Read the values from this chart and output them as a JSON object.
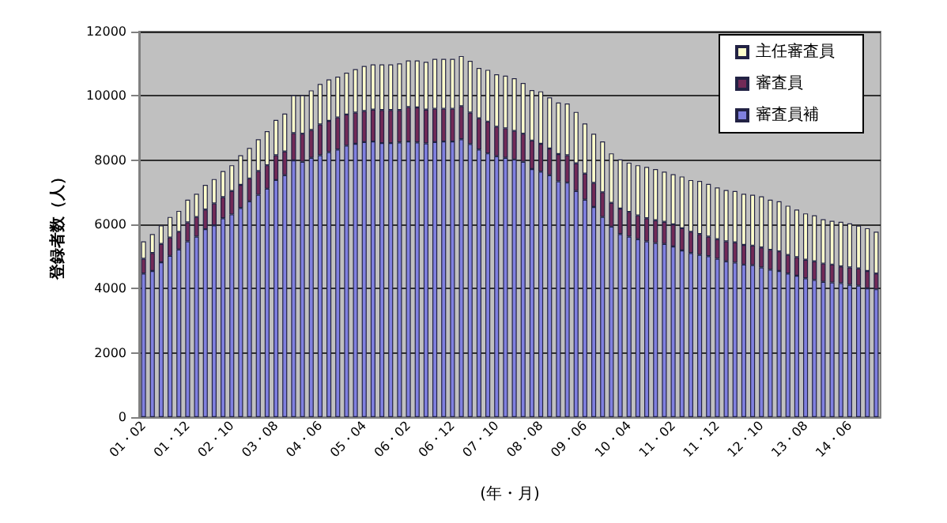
{
  "chart_data": {
    "type": "bar",
    "stacked": true,
    "xlabel": "(年・月)",
    "ylabel": "登録者数（人）",
    "categories": [
      "01・02",
      null,
      null,
      null,
      null,
      "01・12",
      null,
      null,
      null,
      null,
      "02・10",
      null,
      null,
      null,
      null,
      "03・08",
      null,
      null,
      null,
      null,
      "04・06",
      null,
      null,
      null,
      null,
      "05・04",
      null,
      null,
      null,
      null,
      "06・02",
      null,
      null,
      null,
      null,
      "06・12",
      null,
      null,
      null,
      null,
      "07・10",
      null,
      null,
      null,
      null,
      "08・08",
      null,
      null,
      null,
      null,
      "09・06",
      null,
      null,
      null,
      null,
      "10・04",
      null,
      null,
      null,
      null,
      "11・02",
      null,
      null,
      null,
      null,
      "11・12",
      null,
      null,
      null,
      null,
      "12・10",
      null,
      null,
      null,
      null,
      "13・08",
      null,
      null,
      null,
      null,
      "14・06",
      null,
      null,
      null
    ],
    "series": [
      {
        "name": "審査員補",
        "color": "#8080e0",
        "values": [
          4470,
          4550,
          4820,
          5020,
          5220,
          5470,
          5620,
          5850,
          5970,
          6190,
          6310,
          6510,
          6720,
          6920,
          7110,
          7380,
          7530,
          7990,
          7950,
          8070,
          8150,
          8250,
          8330,
          8450,
          8510,
          8560,
          8580,
          8530,
          8530,
          8550,
          8580,
          8550,
          8520,
          8560,
          8580,
          8580,
          8650,
          8500,
          8330,
          8210,
          8120,
          8070,
          8020,
          7950,
          7720,
          7640,
          7530,
          7340,
          7300,
          7040,
          6770,
          6540,
          6230,
          5930,
          5700,
          5620,
          5540,
          5470,
          5420,
          5390,
          5310,
          5190,
          5110,
          5050,
          5010,
          4930,
          4850,
          4810,
          4750,
          4730,
          4660,
          4590,
          4550,
          4470,
          4400,
          4320,
          4270,
          4210,
          4190,
          4170,
          4120,
          4090,
          4010,
          3980
        ]
      },
      {
        "name": "審査員",
        "color": "#722a57",
        "values": [
          460,
          560,
          570,
          570,
          550,
          590,
          610,
          610,
          680,
          660,
          730,
          720,
          710,
          740,
          730,
          770,
          740,
          850,
          870,
          870,
          960,
          970,
          1000,
          970,
          970,
          970,
          990,
          1030,
          1030,
          1010,
          1070,
          1090,
          1050,
          1040,
          1020,
          1020,
          1030,
          980,
          970,
          990,
          920,
          920,
          890,
          870,
          890,
          870,
          830,
          850,
          850,
          860,
          810,
          750,
          770,
          740,
          790,
          770,
          740,
          720,
          710,
          690,
          690,
          690,
          660,
          650,
          610,
          610,
          620,
          630,
          610,
          610,
          620,
          620,
          610,
          580,
          580,
          580,
          580,
          570,
          560,
          520,
          540,
          540,
          540,
          490
        ]
      },
      {
        "name": "主任審査員",
        "color": "#ffffcc",
        "values": [
          540,
          590,
          580,
          640,
          650,
          710,
          720,
          770,
          760,
          810,
          800,
          920,
          950,
          990,
          1060,
          1100,
          1180,
          1180,
          1200,
          1230,
          1260,
          1290,
          1270,
          1300,
          1350,
          1400,
          1410,
          1420,
          1420,
          1450,
          1450,
          1460,
          1490,
          1550,
          1550,
          1550,
          1560,
          1610,
          1570,
          1610,
          1630,
          1640,
          1640,
          1580,
          1570,
          1630,
          1590,
          1600,
          1610,
          1600,
          1560,
          1530,
          1580,
          1540,
          1530,
          1530,
          1560,
          1600,
          1590,
          1560,
          1560,
          1610,
          1610,
          1650,
          1640,
          1610,
          1600,
          1600,
          1590,
          1580,
          1590,
          1560,
          1560,
          1530,
          1480,
          1440,
          1430,
          1380,
          1360,
          1390,
          1370,
          1330,
          1330,
          1300
        ]
      }
    ],
    "ylim": [
      0,
      12000
    ],
    "yticks": [
      0,
      2000,
      4000,
      6000,
      8000,
      10000,
      12000
    ],
    "grid": "y",
    "legend": "top right"
  }
}
